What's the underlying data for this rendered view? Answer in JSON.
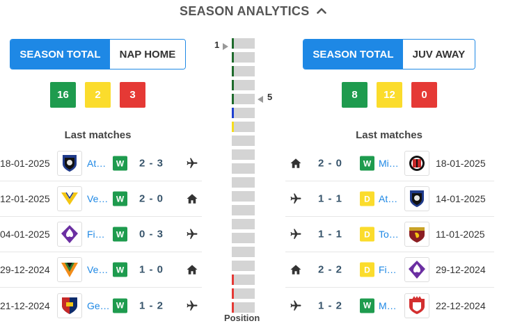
{
  "header": {
    "title": "SEASON ANALYTICS",
    "chevron_icon": "chevron-up-icon"
  },
  "left": {
    "toggle": {
      "active": "SEASON TOTAL",
      "inactive": "NAP HOME"
    },
    "scores": {
      "wins": "16",
      "draws": "2",
      "losses": "3"
    },
    "last_title": "Last matches",
    "matches": [
      {
        "date": "18-01-2025",
        "team": "At…",
        "logo": "atalanta-logo",
        "result": "W",
        "score": "2 - 3",
        "venue": "plane-icon"
      },
      {
        "date": "12-01-2025",
        "team": "Ve…",
        "logo": "verona-logo",
        "result": "W",
        "score": "2 - 0",
        "venue": "home-icon"
      },
      {
        "date": "04-01-2025",
        "team": "Fi…",
        "logo": "fiorentina-logo",
        "result": "W",
        "score": "0 - 3",
        "venue": "plane-icon"
      },
      {
        "date": "29-12-2024",
        "team": "Ve…",
        "logo": "venezia-logo",
        "result": "W",
        "score": "1 - 0",
        "venue": "home-icon"
      },
      {
        "date": "21-12-2024",
        "team": "Ge…",
        "logo": "genoa-logo",
        "result": "W",
        "score": "1 - 2",
        "venue": "plane-icon"
      }
    ]
  },
  "right": {
    "toggle": {
      "active": "SEASON TOTAL",
      "inactive": "JUV AWAY"
    },
    "scores": {
      "wins": "8",
      "draws": "12",
      "losses": "0"
    },
    "last_title": "Last matches",
    "matches": [
      {
        "date": "18-01-2025",
        "team": "Mi…",
        "logo": "milan-logo",
        "result": "W",
        "score": "2 - 0",
        "venue": "home-icon"
      },
      {
        "date": "14-01-2025",
        "team": "At…",
        "logo": "atalanta-logo",
        "result": "D",
        "score": "1 - 1",
        "venue": "plane-icon"
      },
      {
        "date": "11-01-2025",
        "team": "To…",
        "logo": "torino-logo",
        "result": "D",
        "score": "1 - 1",
        "venue": "plane-icon"
      },
      {
        "date": "29-12-2024",
        "team": "Fi…",
        "logo": "fiorentina-logo",
        "result": "D",
        "score": "2 - 2",
        "venue": "home-icon"
      },
      {
        "date": "22-12-2024",
        "team": "M…",
        "logo": "monza-logo",
        "result": "W",
        "score": "1 - 2",
        "venue": "plane-icon"
      }
    ]
  },
  "position": {
    "caption": "Position",
    "home_position": "1",
    "away_position": "5",
    "zones": [
      "green",
      "green",
      "green",
      "green",
      "green",
      "blue",
      "yellow",
      "none",
      "none",
      "none",
      "none",
      "none",
      "none",
      "none",
      "none",
      "none",
      "none",
      "red",
      "red",
      "red"
    ],
    "colors": {
      "green": "#1e6b2c",
      "blue": "#1e40d0",
      "yellow": "#f5dc1e",
      "red": "#e53935",
      "cell": "#d4d4d4"
    }
  }
}
